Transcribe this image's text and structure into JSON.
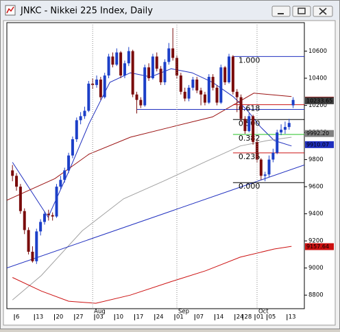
{
  "chart_data": {
    "type": "candlestick",
    "title": "JNKC - Nikkei 225 Index, Daily",
    "categories": [
      null,
      "6",
      null,
      null,
      null,
      null,
      "13",
      null,
      null,
      null,
      null,
      "20",
      null,
      null,
      null,
      null,
      "27",
      null,
      null,
      null,
      null,
      "03",
      null,
      null,
      null,
      null,
      "10",
      null,
      null,
      null,
      null,
      "17",
      null,
      null,
      null,
      null,
      "24",
      null,
      null,
      null,
      null,
      "01",
      null,
      null,
      null,
      null,
      "07",
      null,
      null,
      null,
      null,
      "14",
      null,
      null,
      null,
      null,
      "24",
      null,
      "28",
      null,
      null,
      "01",
      null,
      null,
      "05",
      null,
      null,
      null,
      null,
      "13",
      null
    ],
    "months": {
      "x": [
        20,
        41,
        61
      ],
      "labels": [
        "Aug",
        "Sep",
        "Oct"
      ]
    },
    "ohlc": {
      "open": [
        9720,
        9680,
        9600,
        9420,
        9280,
        9120,
        9050,
        9270,
        9340,
        9400,
        9390,
        9380,
        9600,
        9650,
        9720,
        9830,
        9950,
        10090,
        10120,
        10160,
        10360,
        10350,
        10390,
        10260,
        10420,
        10560,
        10500,
        10590,
        10420,
        10510,
        10600,
        10280,
        10240,
        10200,
        10480,
        10400,
        10560,
        10470,
        10370,
        10520,
        10620,
        10550,
        10420,
        10300,
        10250,
        10330,
        10390,
        10310,
        10280,
        10220,
        10410,
        10330,
        10220,
        10480,
        10370,
        10560,
        10300,
        10260,
        10100,
        10010,
        10120,
        9930,
        9800,
        9680,
        9690,
        9800,
        9850,
        10000,
        10020,
        10040,
        10200
      ],
      "high": [
        9760,
        9700,
        9620,
        9440,
        9300,
        9160,
        9290,
        9360,
        9420,
        9430,
        9410,
        9620,
        9680,
        9740,
        9850,
        9970,
        10110,
        10150,
        10190,
        10380,
        10400,
        10420,
        10410,
        10440,
        10580,
        10590,
        10620,
        10600,
        10530,
        10630,
        10610,
        10300,
        10260,
        10500,
        10510,
        10580,
        10590,
        10490,
        10540,
        10660,
        10770,
        10570,
        10440,
        10330,
        10350,
        10410,
        10410,
        10330,
        10300,
        10430,
        10430,
        10350,
        10500,
        10490,
        10580,
        10570,
        10320,
        10280,
        10120,
        10140,
        10130,
        9950,
        9810,
        9710,
        9830,
        9880,
        10020,
        10060,
        10080,
        10100,
        10260
      ],
      "low": [
        9640,
        9570,
        9400,
        9250,
        9100,
        9040,
        9030,
        9240,
        9320,
        9350,
        9350,
        9370,
        9580,
        9630,
        9700,
        9810,
        9930,
        10060,
        10100,
        10150,
        10320,
        10330,
        10240,
        10250,
        10400,
        10480,
        10490,
        10400,
        10400,
        10490,
        10260,
        10140,
        10180,
        10190,
        10380,
        10390,
        10450,
        10350,
        10350,
        10500,
        10530,
        10400,
        10280,
        10230,
        10230,
        10310,
        10290,
        10200,
        10200,
        10210,
        10310,
        10200,
        10210,
        10350,
        10360,
        10280,
        10150,
        10080,
        9990,
        10000,
        9910,
        9780,
        9650,
        9640,
        9670,
        9780,
        9840,
        9980,
        9990,
        10020,
        10180
      ],
      "close": [
        9680,
        9600,
        9420,
        9280,
        9120,
        9050,
        9270,
        9340,
        9400,
        9390,
        9380,
        9600,
        9650,
        9720,
        9830,
        9950,
        10090,
        10120,
        10160,
        10360,
        10350,
        10390,
        10260,
        10420,
        10560,
        10500,
        10590,
        10420,
        10510,
        10600,
        10280,
        10240,
        10200,
        10480,
        10400,
        10560,
        10470,
        10370,
        10520,
        10620,
        10550,
        10420,
        10300,
        10250,
        10330,
        10390,
        10310,
        10280,
        10220,
        10410,
        10330,
        10220,
        10480,
        10370,
        10560,
        10300,
        10260,
        10100,
        10010,
        10120,
        9930,
        9800,
        9680,
        9690,
        9800,
        9850,
        10000,
        10020,
        10040,
        10070,
        10240
      ]
    },
    "up_color": "#1c3fc8",
    "down_color": "#7a0c0c",
    "lines": [
      {
        "color": "#1f2fbf",
        "x": [
          0,
          8.9,
          14,
          19.1,
          24.3,
          29.4,
          34.5,
          39.6,
          44.8,
          49.9,
          55,
          58.5,
          61.9,
          65.3,
          69.6
        ],
        "values": [
          9780,
          9375,
          9710,
          10065,
          10370,
          10440,
          10410,
          10470,
          10440,
          10370,
          10265,
          10165,
          10040,
          9940,
          9900
        ]
      },
      {
        "color": "#9a1010",
        "x": [
          -1.4,
          10.6,
          19.1,
          29.4,
          39.6,
          49.9,
          60.2,
          69.6
        ],
        "values": [
          9500,
          9660,
          9840,
          9965,
          10040,
          10115,
          10290,
          10265
        ]
      },
      {
        "color": "#a0a0a0",
        "x": [
          0,
          7.2,
          17.4,
          27.7,
          38,
          48.2,
          56.8,
          63.6,
          69.6
        ],
        "values": [
          8765,
          8945,
          9275,
          9510,
          9645,
          9785,
          9900,
          9940,
          9965
        ]
      },
      {
        "color": "#cc1010",
        "x": [
          0,
          7.2,
          14,
          20.8,
          29.4,
          39.6,
          48.2,
          56.8,
          65.3,
          69.6
        ],
        "values": [
          8930,
          8830,
          8755,
          8740,
          8800,
          8900,
          8980,
          9080,
          9140,
          9160
        ]
      },
      {
        "color": "#1f2fbf",
        "x": [
          -1.4,
          72.8
        ],
        "values": [
          9000,
          9760
        ]
      },
      {
        "color": "#1f2fbf",
        "x": [
          31,
          72.8
        ],
        "values": [
          10170,
          10170
        ]
      }
    ],
    "fib": {
      "high": 10560,
      "low": 9630,
      "x_start": 55,
      "levels": [
        {
          "value": 1,
          "label": "1.000"
        },
        {
          "value": 0.618,
          "label": "0.618"
        },
        {
          "value": 0.5,
          "label": "0.500"
        },
        {
          "value": 0.382,
          "label": "0.382"
        },
        {
          "value": 0.236,
          "label": "0.236"
        },
        {
          "value": 0,
          "label": "0.000"
        }
      ],
      "colors": [
        "#1f2fbf",
        "#cc1010",
        "#000000",
        "#20c020",
        "#cc1010",
        "#000000"
      ]
    },
    "price_labels": [
      10237.85,
      10233.65,
      {
        "value": 9992.2,
        "label": "9992.20"
      },
      9910.07,
      9157.64
    ],
    "price_label_colors": [
      "#8b1010",
      "#404040",
      "#808080",
      "#1f2fbf",
      "#cc1010"
    ],
    "xlim": [
      -1.4,
      72.8
    ],
    "ylim": [
      8700,
      10810
    ],
    "yticks": [
      8800,
      9000,
      9200,
      9400,
      9600,
      9800,
      10000,
      10200,
      10400,
      10600
    ]
  }
}
